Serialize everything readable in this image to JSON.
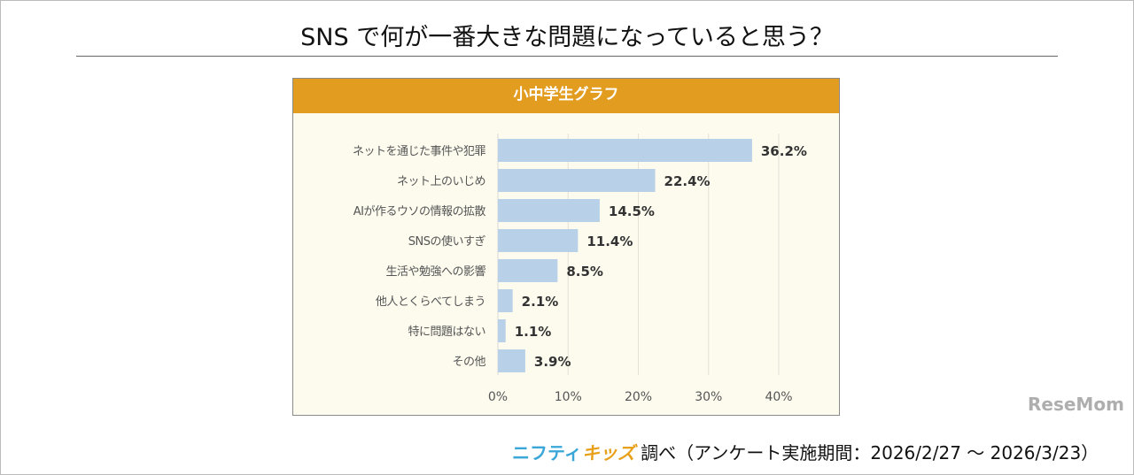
{
  "title": "SNS で何が一番大きな問題になっていると思う？",
  "chart_data": {
    "type": "bar",
    "orientation": "horizontal",
    "title": "小中学生グラフ",
    "categories": [
      "ネットを通じた事件や犯罪",
      "ネット上のいじめ",
      "AIが作るウソの情報の拡散",
      "SNSの使いすぎ",
      "生活や勉強への影響",
      "他人とくらべてしまう",
      "特に問題はない",
      "その他"
    ],
    "values": [
      36.2,
      22.4,
      14.5,
      11.4,
      8.5,
      2.1,
      1.1,
      3.9
    ],
    "data_labels": [
      "36.2%",
      "22.4%",
      "14.5%",
      "11.4%",
      "8.5%",
      "2.1%",
      "1.1%",
      "3.9%"
    ],
    "xlim": [
      0,
      40
    ],
    "xticks": [
      "0%",
      "10%",
      "20%",
      "30%",
      "40%"
    ],
    "grid": true,
    "colors": {
      "bar": "#b8d0e8",
      "header": "#e29c1f",
      "background": "#fdfbee"
    }
  },
  "footer": {
    "brand_part1": "ニフティ",
    "brand_part2": "キッズ",
    "text": "調べ（アンケート実施期間：2026/2/27 ～ 2026/3/23）"
  },
  "watermark": "ReseMom"
}
